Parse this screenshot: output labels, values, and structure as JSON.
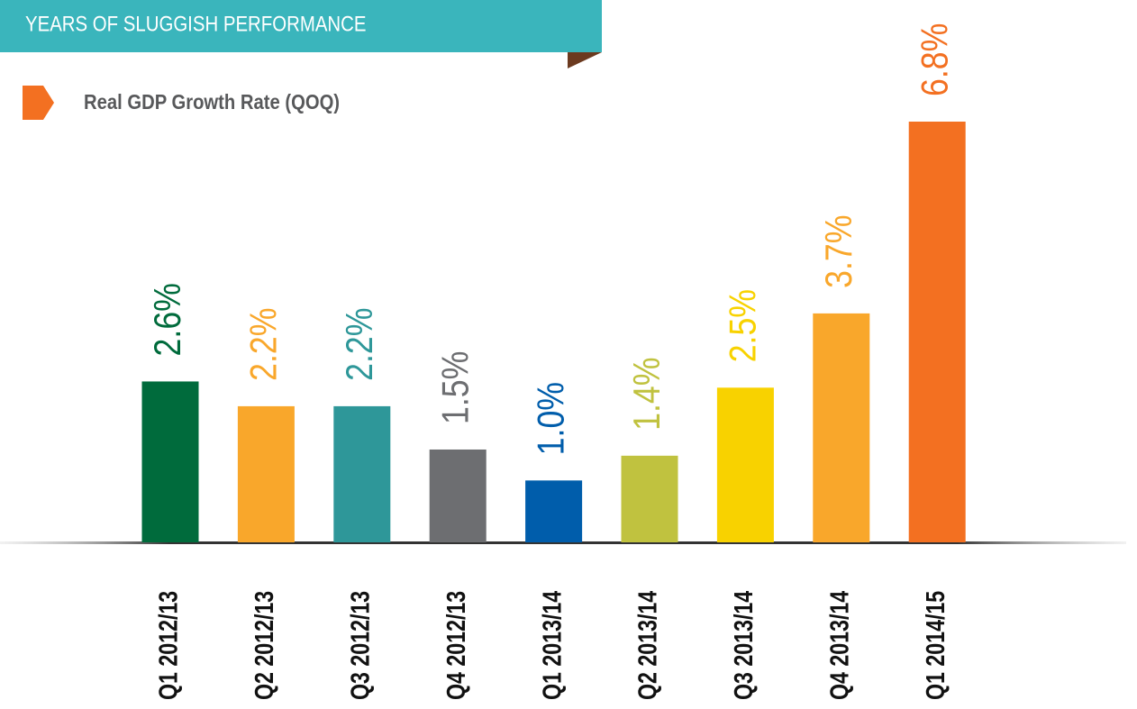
{
  "chart_data": {
    "type": "bar",
    "title": "YEARS OF SLUGGISH PERFORMANCE",
    "subtitle": "Real GDP Growth Rate (QOQ)",
    "categories": [
      "Q1 2012/13",
      "Q2 2012/13",
      "Q3 2012/13",
      "Q4 2012/13",
      "Q1 2013/14",
      "Q2 2013/14",
      "Q3 2013/14",
      "Q4 2013/14",
      "Q1 2014/15"
    ],
    "values": [
      2.6,
      2.2,
      2.2,
      1.5,
      1.0,
      1.4,
      2.5,
      3.7,
      6.8
    ],
    "value_labels": [
      "2.6%",
      "2.2%",
      "2.2%",
      "1.5%",
      "1.0%",
      "1.4%",
      "2.5%",
      "3.7%",
      "6.8%"
    ],
    "colors": [
      "#006b3c",
      "#f9a72b",
      "#2e9799",
      "#6d6e71",
      "#005dab",
      "#c0c23f",
      "#f8d200",
      "#f9a72b",
      "#f37021"
    ]
  }
}
